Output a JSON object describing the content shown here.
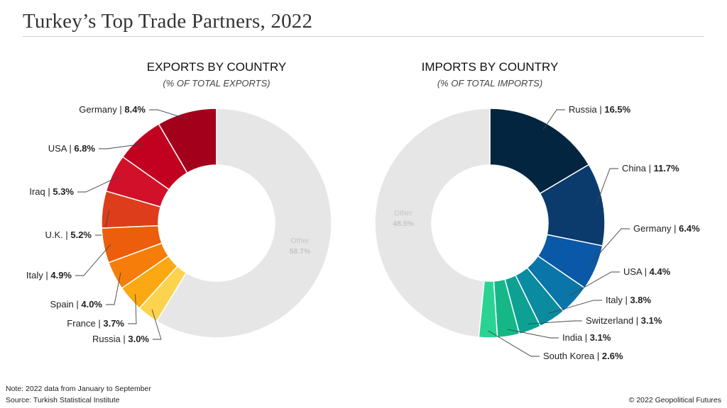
{
  "page": {
    "title": "Turkey’s Top Trade Partners, 2022",
    "note": "Note: 2022 data from January to September",
    "source": "Source: Turkish Statistical Institute",
    "copyright": "© 2022 Geopolitical Futures"
  },
  "chart_data": [
    {
      "type": "pie",
      "title": "EXPORTS BY COUNTRY",
      "subtitle": "(% OF TOTAL EXPORTS)",
      "unit": "%",
      "start_category": "Germany",
      "direction": "counterclockwise",
      "slices": [
        {
          "label": "Germany",
          "value": 8.4,
          "color": "#a3001b"
        },
        {
          "label": "USA",
          "value": 6.8,
          "color": "#c20020"
        },
        {
          "label": "Iraq",
          "value": 5.3,
          "color": "#d2102a"
        },
        {
          "label": "U.K.",
          "value": 5.2,
          "color": "#dd3d1a"
        },
        {
          "label": "Italy",
          "value": 4.9,
          "color": "#ec5d0c"
        },
        {
          "label": "Spain",
          "value": 4.0,
          "color": "#f77d0a"
        },
        {
          "label": "France",
          "value": 3.7,
          "color": "#fba813"
        },
        {
          "label": "Russia",
          "value": 3.0,
          "color": "#fcd34f"
        },
        {
          "label": "Other",
          "value": 58.7,
          "color": "#e6e6e6"
        }
      ]
    },
    {
      "type": "pie",
      "title": "IMPORTS BY COUNTRY",
      "subtitle": "(% OF TOTAL IMPORTS)",
      "unit": "%",
      "start_category": "Russia",
      "direction": "clockwise",
      "slices": [
        {
          "label": "Russia",
          "value": 16.5,
          "color": "#032540"
        },
        {
          "label": "China",
          "value": 11.7,
          "color": "#0b3b6d"
        },
        {
          "label": "Germany",
          "value": 6.4,
          "color": "#0a58a8"
        },
        {
          "label": "USA",
          "value": 4.4,
          "color": "#0a75a8"
        },
        {
          "label": "Italy",
          "value": 3.8,
          "color": "#0b8b9f"
        },
        {
          "label": "Switzerland",
          "value": 3.1,
          "color": "#0ea193"
        },
        {
          "label": "India",
          "value": 3.1,
          "color": "#16b787"
        },
        {
          "label": "South Korea",
          "value": 2.6,
          "color": "#2ad394"
        },
        {
          "label": "Other",
          "value": 48.5,
          "color": "#e6e6e6"
        }
      ]
    }
  ]
}
